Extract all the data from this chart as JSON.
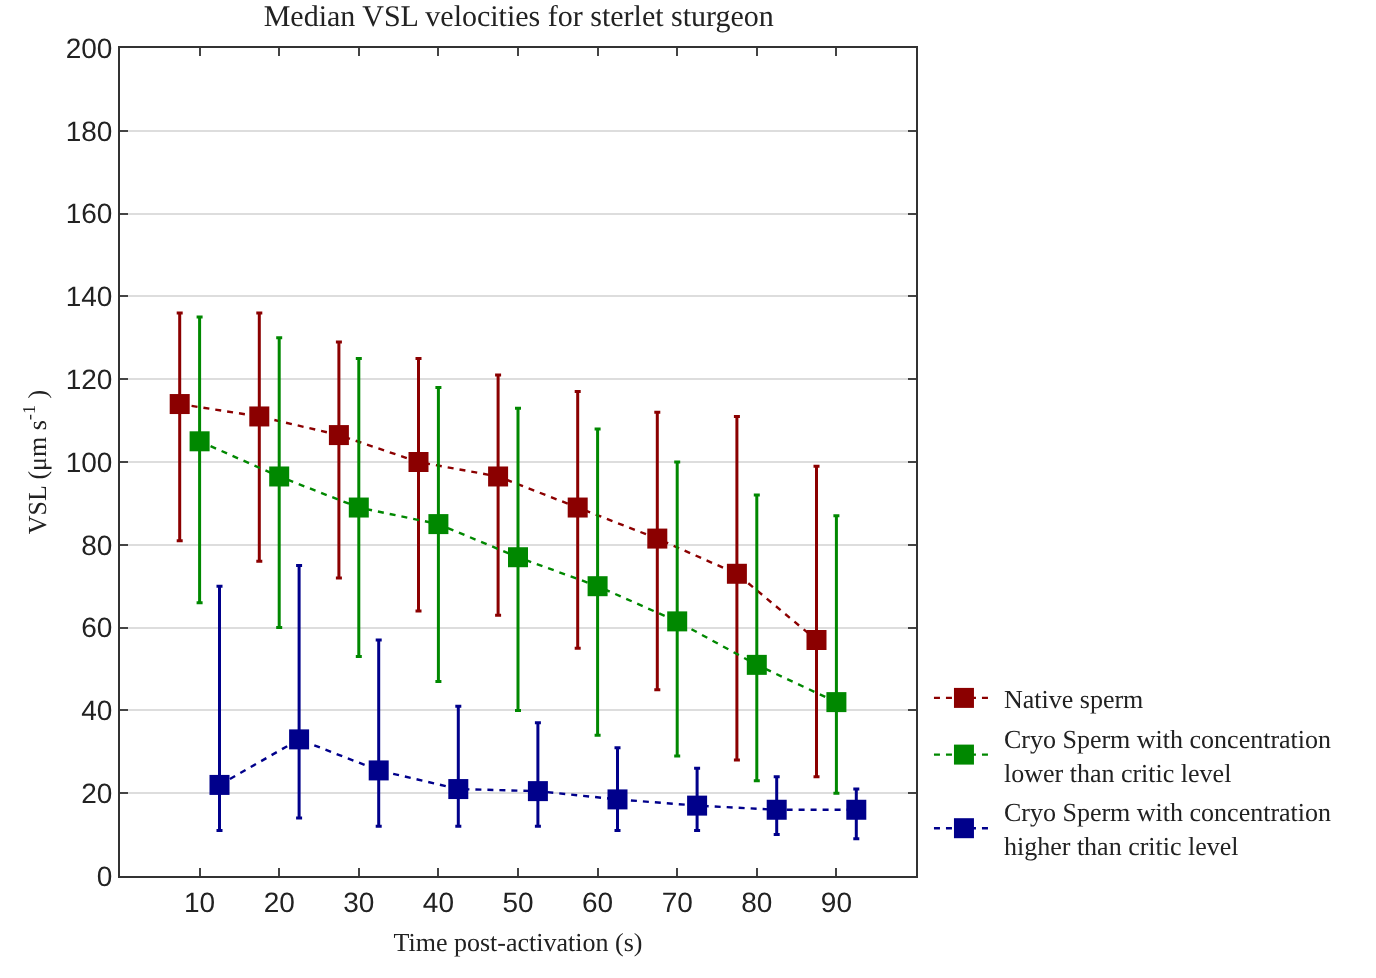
{
  "chart_data": {
    "type": "line",
    "title": "Median VSL velocities for sterlet sturgeon",
    "xlabel": "Time post-activation (s)",
    "ylabel": "VSL (μm s$^{-1}$ )",
    "xlim": [
      0,
      100
    ],
    "xticks": [
      10,
      20,
      30,
      40,
      50,
      60,
      70,
      80,
      90
    ],
    "ylim": [
      0,
      200
    ],
    "yticks": [
      0,
      20,
      40,
      60,
      80,
      100,
      120,
      140,
      160,
      180,
      200
    ],
    "grid": "y",
    "legend": "bottom right",
    "marker": "square",
    "line_style": "dotted",
    "series": [
      {
        "name": "Native sperm",
        "color": "#8b0000",
        "x": [
          7.5,
          17.5,
          27.5,
          37.5,
          47.5,
          57.5,
          67.5,
          77.5,
          87.5
        ],
        "values": [
          114,
          111,
          106.5,
          100,
          96.5,
          89,
          81.5,
          73,
          57
        ],
        "errors": [
          [
            81,
            136
          ],
          [
            76,
            136
          ],
          [
            72,
            129
          ],
          [
            64,
            125
          ],
          [
            63,
            121
          ],
          [
            55,
            117
          ],
          [
            45,
            112
          ],
          [
            28,
            111
          ],
          [
            24,
            99
          ]
        ]
      },
      {
        "name": "Cryo Sperm with concentration lower than critic level",
        "color": "#008800",
        "x": [
          10,
          20,
          30,
          40,
          50,
          60,
          70,
          80,
          90
        ],
        "values": [
          105,
          96.5,
          89,
          85,
          77,
          70,
          61.5,
          51,
          42
        ],
        "errors": [
          [
            66,
            135
          ],
          [
            60,
            130
          ],
          [
            53,
            125
          ],
          [
            47,
            118
          ],
          [
            40,
            113
          ],
          [
            34,
            108
          ],
          [
            29,
            100
          ],
          [
            23,
            92
          ],
          [
            20,
            87
          ]
        ]
      },
      {
        "name": "Cryo Sperm with concentration higher than critic level",
        "color": "#00008b",
        "x": [
          12.5,
          22.5,
          32.5,
          42.5,
          52.5,
          62.5,
          72.5,
          82.5,
          92.5
        ],
        "values": [
          22,
          33,
          25.5,
          21,
          20.5,
          18.5,
          17,
          16,
          16
        ],
        "errors": [
          [
            11,
            70
          ],
          [
            14,
            75
          ],
          [
            12,
            57
          ],
          [
            12,
            41
          ],
          [
            12,
            37
          ],
          [
            11,
            31
          ],
          [
            11,
            26
          ],
          [
            10,
            24
          ],
          [
            9,
            21
          ]
        ]
      }
    ]
  }
}
